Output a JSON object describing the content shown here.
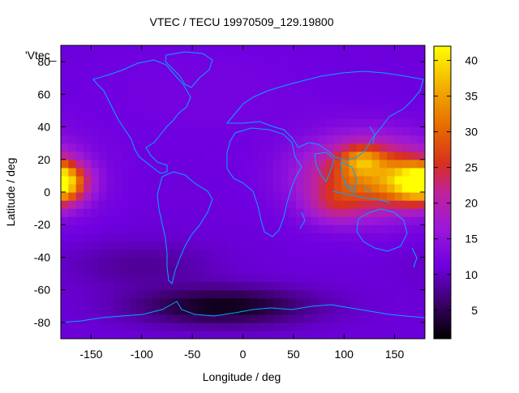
{
  "chart_data": {
    "type": "heatmap",
    "title": "VTEC / TECU 19970509_129.19800",
    "xlabel": "Longitude / deg",
    "ylabel": "Latitude / deg",
    "key_label": "'Vtec_",
    "xlim": [
      -180,
      180
    ],
    "ylim": [
      -90,
      90
    ],
    "colorbar_range": [
      1,
      42
    ],
    "xticks": [
      -150,
      -100,
      -50,
      0,
      50,
      100,
      150
    ],
    "yticks": [
      -80,
      -60,
      -40,
      -20,
      0,
      20,
      40,
      60,
      80
    ],
    "colorbar_ticks": [
      5,
      10,
      15,
      20,
      25,
      30,
      35,
      40
    ],
    "colormap": "black-purple-red-orange-yellow",
    "coastline_color": "#00aaff",
    "grid": false,
    "features": [
      {
        "description": "equatorial anomaly crest",
        "lon": 120,
        "lat": 18,
        "vtec": 38
      },
      {
        "description": "equatorial anomaly peak",
        "lon": 175,
        "lat": 5,
        "vtec": 39
      },
      {
        "description": "equatorial anomaly crest",
        "lon": 95,
        "lat": -5,
        "vtec": 33
      },
      {
        "description": "dateline wrap peak",
        "lon": -178,
        "lat": 5,
        "vtec": 36
      },
      {
        "description": "southern high-latitude minimum",
        "lon": -20,
        "lat": -70,
        "vtec": 2
      },
      {
        "description": "northern polar background",
        "lon": 0,
        "lat": 80,
        "vtec": 11
      }
    ]
  }
}
